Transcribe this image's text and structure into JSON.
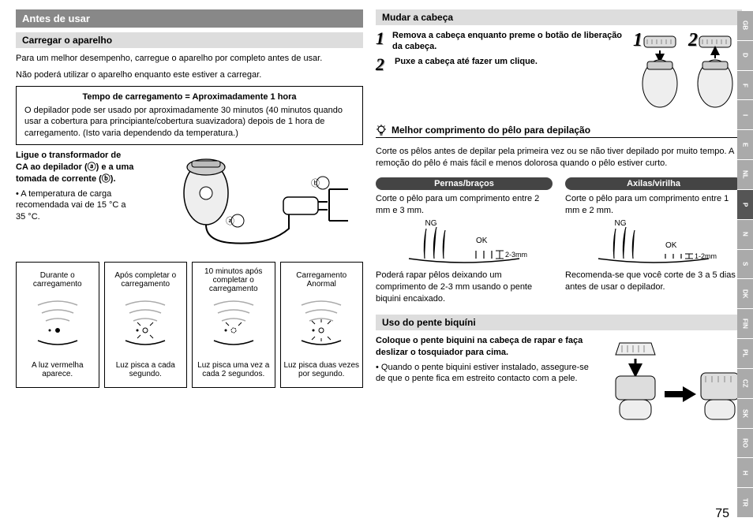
{
  "left": {
    "h1": "Antes de usar",
    "h2_charge": "Carregar o aparelho",
    "p1": "Para um melhor desempenho, carregue o aparelho por completo antes de usar.",
    "p2": "Não poderá utilizar o aparelho enquanto este estiver a carregar.",
    "box_title": "Tempo de carregamento = Aproximadamente 1 hora",
    "box_body": "O depilador pode ser usado por aproximadamente 30 minutos (40 minutos quando usar a cobertura para principiante/cobertura suavizadora) depois de 1 hora de carregamento. (Isto varia dependendo da temperatura.)",
    "connect_bold": "Ligue o transformador de CA ao depilador (ⓐ) e a uma tomada de corrente (ⓑ).",
    "connect_note": "• A temperatura de carga recomendada vai de 15 °C a 35 °C.",
    "label_a": "ⓐ",
    "label_b": "ⓑ",
    "status": [
      {
        "top": "Durante o carregamento",
        "bot": "A luz vermelha aparece."
      },
      {
        "top": "Após completar o carregamento",
        "bot": "Luz pisca a cada segundo."
      },
      {
        "top": "10 minutos após completar o carregamento",
        "bot": "Luz pisca uma vez a cada 2 segundos."
      },
      {
        "top": "Carregamento Anormal",
        "bot": "Luz pisca duas vezes por segundo."
      }
    ]
  },
  "right": {
    "h2_head": "Mudar a cabeça",
    "step1_num": "1",
    "step1": "Remova a cabeça enquanto preme o botão de liberação da cabeça.",
    "step2_num": "2",
    "step2": "Puxe a cabeça até fazer um clique.",
    "fig_num1": "1",
    "fig_num2": "2",
    "tip_title": "Melhor comprimento do pêlo para depilação",
    "tip_body": "Corte os pêlos antes de depilar pela primeira vez ou se não tiver depilado por muito tempo. A remoção do pêlo é mais fácil e menos dolorosa quando o pêlo estiver curto.",
    "pill_legs": "Pernas/braços",
    "pill_arms": "Axilas/virilha",
    "legs_text": "Corte o pêlo para um comprimento entre 2 mm e 3 mm.",
    "arms_text": "Corte o pêlo para um comprimento entre 1 mm e 2 mm.",
    "ng": "NG",
    "ok": "OK",
    "legs_mm": "2-3mm",
    "arms_mm": "1-2mm",
    "legs_note": "Poderá rapar pêlos deixando um comprimento de 2-3 mm usando o pente biquini encaixado.",
    "arms_note": "Recomenda-se que você corte de 3 a 5 dias antes de usar o depilador.",
    "h2_bikini": "Uso do pente biquíni",
    "bikini_bold": "Coloque o pente biquini na cabeça de rapar e faça deslizar o tosquiador para cima.",
    "bikini_note": "• Quando o pente biquini estiver instalado, assegure-se de que o pente fica em estreito contacto com a pele."
  },
  "tabs": [
    "GB",
    "D",
    "F",
    "I",
    "E",
    "NL",
    "P",
    "N",
    "S",
    "DK",
    "FIN",
    "PL",
    "CZ",
    "SK",
    "RO",
    "H",
    "TR"
  ],
  "active_tab": "P",
  "colors": {
    "h1_bg": "#888888",
    "h2_bg": "#dddddd",
    "pill_bg": "#444444",
    "tab_bg": "#aaaaaa",
    "tab_active_bg": "#555555"
  },
  "page_number": "75"
}
